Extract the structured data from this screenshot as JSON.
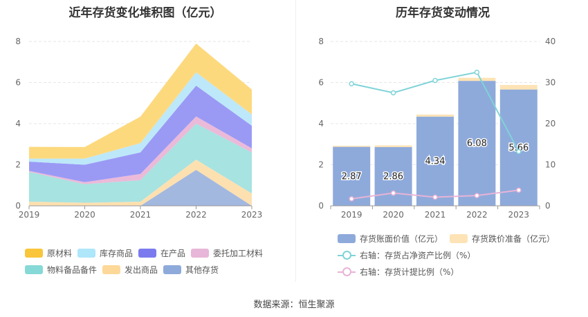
{
  "left": {
    "title": "近年存货变化堆积图（亿元）",
    "chart_data": {
      "type": "area",
      "stacked": true,
      "categories": [
        "2019",
        "2020",
        "2021",
        "2022",
        "2023"
      ],
      "ylim": [
        0,
        8
      ],
      "yticks": [
        "0",
        "2",
        "4",
        "6",
        "8"
      ],
      "grid": true,
      "legend_position": "bottom",
      "series": [
        {
          "name": "其他存货",
          "color": "#a3b8df",
          "values": [
            0.0,
            0.0,
            0.0,
            1.75,
            0.0
          ]
        },
        {
          "name": "发出商品",
          "color": "#fde0b0",
          "values": [
            0.2,
            0.15,
            0.2,
            0.5,
            0.6
          ]
        },
        {
          "name": "物料备品备件",
          "color": "#a6e3e1",
          "values": [
            1.45,
            0.9,
            1.05,
            1.75,
            2.0
          ]
        },
        {
          "name": "委托加工材料",
          "color": "#ebbad9",
          "values": [
            0.05,
            0.1,
            0.3,
            0.35,
            0.2
          ]
        },
        {
          "name": "在产品",
          "color": "#9a9af5",
          "values": [
            0.45,
            0.85,
            1.05,
            1.5,
            1.1
          ]
        },
        {
          "name": "库存商品",
          "color": "#bde8f9",
          "values": [
            0.15,
            0.3,
            0.45,
            0.65,
            0.55
          ]
        },
        {
          "name": "原材料",
          "color": "#fdd97e",
          "values": [
            0.57,
            0.56,
            1.29,
            1.4,
            1.21
          ]
        }
      ]
    },
    "legend": [
      {
        "name": "原材料",
        "color": "#f9c53a"
      },
      {
        "name": "库存商品",
        "color": "#aee6fa"
      },
      {
        "name": "在产品",
        "color": "#7b7bef"
      },
      {
        "name": "委托加工材料",
        "color": "#e7b6d8"
      },
      {
        "name": "物料备品备件",
        "color": "#86d9d6"
      },
      {
        "name": "发出商品",
        "color": "#fdd898"
      },
      {
        "name": "其他存货",
        "color": "#8eaadb"
      }
    ]
  },
  "right": {
    "title": "历年存货变动情况",
    "chart_data": {
      "type": "bar",
      "categories": [
        "2019",
        "2020",
        "2021",
        "2022",
        "2023"
      ],
      "ylim": [
        0,
        8
      ],
      "yticks": [
        "0",
        "2",
        "4",
        "6",
        "8"
      ],
      "y2lim": [
        0,
        40
      ],
      "y2ticks": [
        "0",
        "10",
        "20",
        "30",
        "40"
      ],
      "grid": true,
      "legend_position": "bottom",
      "series": [
        {
          "name": "存货账面价值（亿元）",
          "type": "bar",
          "color": "#8eaadb",
          "values": [
            2.87,
            2.86,
            4.34,
            6.08,
            5.66
          ],
          "labels": [
            "2.87",
            "2.86",
            "4.34",
            "6.08",
            "5.66"
          ]
        },
        {
          "name": "存货跌价准备（亿元）",
          "type": "bar",
          "color": "#fde3b5",
          "values": [
            0.05,
            0.08,
            0.1,
            0.15,
            0.22
          ]
        },
        {
          "name": "右轴：存货占净资产比例（%）",
          "type": "line",
          "axis": "right",
          "color": "#7fd3d8",
          "values": [
            29.7,
            27.5,
            30.5,
            32.5,
            13.2
          ]
        },
        {
          "name": "右轴：存货计提比例（%）",
          "type": "line",
          "axis": "right",
          "color": "#e8b4d6",
          "values": [
            1.7,
            3.1,
            2.1,
            2.5,
            3.8
          ]
        }
      ]
    }
  },
  "source": "数据来源：恒生聚源"
}
